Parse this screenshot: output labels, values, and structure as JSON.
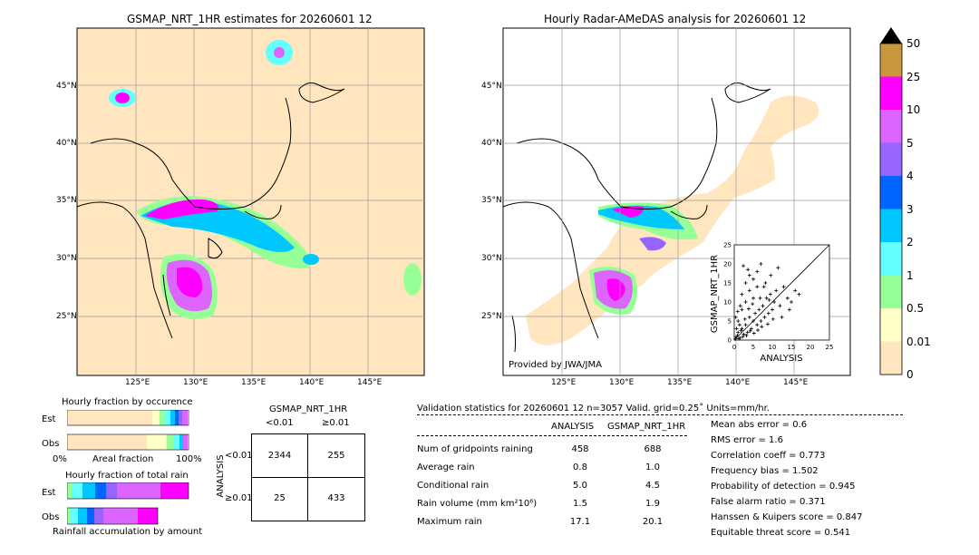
{
  "left_panel": {
    "title": "GSMAP_NRT_1HR estimates for 20260601 12",
    "lat_labels": [
      "45°N",
      "40°N",
      "35°N",
      "30°N",
      "25°N"
    ],
    "lon_labels": [
      "125°E",
      "130°E",
      "135°E",
      "140°E",
      "145°E"
    ]
  },
  "right_panel": {
    "title": "Hourly Radar-AMeDAS analysis for 20260601 12",
    "lat_labels": [
      "45°N",
      "40°N",
      "35°N",
      "30°N",
      "25°N"
    ],
    "lon_labels": [
      "125°E",
      "130°E",
      "135°E",
      "140°E",
      "145°E"
    ],
    "credit": "Provided by JWA/JMA"
  },
  "colorbar": {
    "labels": [
      "50",
      "25",
      "10",
      "5",
      "4",
      "3",
      "2",
      "1",
      "0.5",
      "0.01",
      "0"
    ],
    "colors": [
      "#c8963c",
      "#ff00ff",
      "#dc64ff",
      "#9664ff",
      "#0064ff",
      "#00c8ff",
      "#64ffff",
      "#96ff96",
      "#ffffc8",
      "#ffe6be"
    ]
  },
  "occurrence": {
    "title": "Hourly fraction by occurence",
    "row_labels": [
      "Est",
      "Obs"
    ],
    "axis_left": "0%",
    "axis_mid": "Areal fraction",
    "axis_right": "100%"
  },
  "total_rain": {
    "title": "Hourly fraction of total rain",
    "row_labels": [
      "Est",
      "Obs"
    ],
    "footer": "Rainfall accumulation by amount"
  },
  "contingency": {
    "title": "GSMAP_NRT_1HR",
    "col_labels": [
      "<0.01",
      "≥0.01"
    ],
    "row_axis": "ANALYSIS",
    "row_labels": [
      "<0.01",
      "≥0.01"
    ],
    "cells": [
      "2344",
      "255",
      "25",
      "433"
    ]
  },
  "validation": {
    "header": "Validation statistics for 20260601 12  n=3057 Valid. grid=0.25˚ Units=mm/hr.",
    "col_analysis": "ANALYSIS",
    "col_gsmap": "GSMAP_NRT_1HR",
    "rows": [
      {
        "label": "Num of gridpoints raining",
        "analysis": "458",
        "gsmap": "688"
      },
      {
        "label": "Average rain",
        "analysis": "0.8",
        "gsmap": "1.0"
      },
      {
        "label": "Conditional rain",
        "analysis": "5.0",
        "gsmap": "4.5"
      },
      {
        "label": "Rain volume (mm km²10⁶)",
        "analysis": "1.5",
        "gsmap": "1.9"
      },
      {
        "label": "Maximum rain",
        "analysis": "17.1",
        "gsmap": "20.1"
      }
    ],
    "scores": [
      "Mean abs error =    0.6",
      "RMS error =    1.6",
      "Correlation coeff =  0.773",
      "Frequency bias =  1.502",
      "Probability of detection =  0.945",
      "False alarm ratio =  0.371",
      "Hanssen & Kuipers score =  0.847",
      "Equitable threat score =  0.541"
    ]
  },
  "chart_data": {
    "type": "scatter",
    "title": "",
    "xlabel": "ANALYSIS",
    "ylabel": "GSMAP_NRT_1HR",
    "xlim": [
      0,
      25
    ],
    "ylim": [
      0,
      25
    ],
    "ticks": [
      "0",
      "5",
      "10",
      "15",
      "20",
      "25"
    ],
    "points": [
      [
        0.5,
        0.8
      ],
      [
        1,
        2
      ],
      [
        1.5,
        0.5
      ],
      [
        2,
        3
      ],
      [
        2.5,
        1.5
      ],
      [
        3,
        4
      ],
      [
        3.5,
        2
      ],
      [
        4,
        6
      ],
      [
        4.5,
        3
      ],
      [
        5,
        5
      ],
      [
        5.5,
        7
      ],
      [
        6,
        4
      ],
      [
        6.5,
        8
      ],
      [
        7,
        5
      ],
      [
        7.5,
        9
      ],
      [
        8,
        6
      ],
      [
        8.5,
        11
      ],
      [
        9,
        7
      ],
      [
        9.5,
        12
      ],
      [
        10,
        8
      ],
      [
        10.5,
        10
      ],
      [
        11,
        13
      ],
      [
        12,
        9
      ],
      [
        13,
        14
      ],
      [
        14,
        11
      ],
      [
        15,
        10
      ],
      [
        16,
        13
      ],
      [
        17,
        12
      ],
      [
        1,
        5
      ],
      [
        2,
        8
      ],
      [
        3,
        10
      ],
      [
        4,
        13
      ],
      [
        5,
        16
      ],
      [
        6,
        18
      ],
      [
        7,
        20
      ],
      [
        3,
        15
      ],
      [
        4,
        17
      ],
      [
        2,
        12
      ],
      [
        5,
        11
      ],
      [
        6,
        14
      ],
      [
        0.3,
        0.3
      ],
      [
        0.8,
        1.2
      ],
      [
        1.2,
        0.4
      ],
      [
        1.8,
        2.5
      ],
      [
        2.2,
        0.9
      ],
      [
        0.6,
        3
      ],
      [
        1.4,
        4
      ],
      [
        2.8,
        5.5
      ],
      [
        3.2,
        1.2
      ],
      [
        4.2,
        2.4
      ],
      [
        0.4,
        6
      ],
      [
        0.9,
        7.5
      ],
      [
        1.6,
        9
      ],
      [
        3.8,
        8.2
      ],
      [
        6.8,
        11
      ],
      [
        8.2,
        15
      ],
      [
        9.6,
        17
      ],
      [
        11.5,
        19
      ],
      [
        12.5,
        6
      ],
      [
        14.5,
        8
      ],
      [
        7.2,
        3.5
      ],
      [
        8.8,
        4.2
      ],
      [
        10.2,
        5.5
      ],
      [
        5.2,
        1.8
      ],
      [
        6.2,
        2.6
      ],
      [
        2.4,
        19.5
      ],
      [
        3.6,
        18.5
      ],
      [
        7.8,
        14
      ],
      [
        4.8,
        9.5
      ],
      [
        9.2,
        10.5
      ]
    ],
    "grid": false
  }
}
